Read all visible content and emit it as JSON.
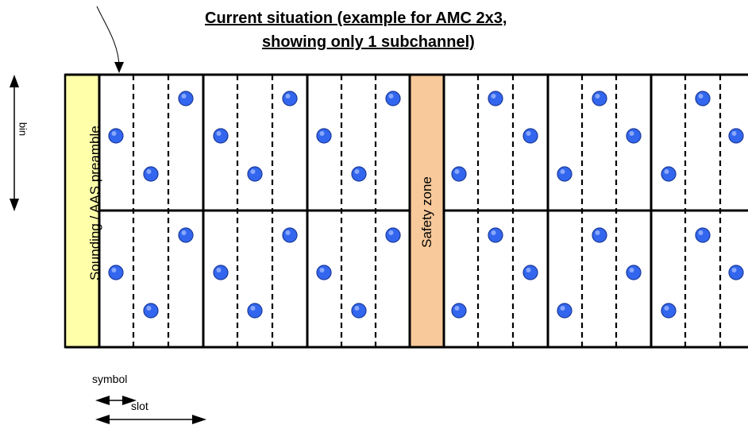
{
  "title": {
    "line1": "Current situation (example for AMC 2x3,",
    "line2": "showing only 1 subchannel)"
  },
  "labels": {
    "bin": "bin",
    "preamble": "Sounding / AAS preamble",
    "safety": "Safety zone",
    "symbol": "symbol",
    "slot": "slot"
  },
  "colors": {
    "preamble": "#ffffaa",
    "safety": "#f8c99b",
    "pilot": "#3366ee",
    "pilot_edge": "#1a3a99"
  },
  "icons": {
    "pilot": "pilot-dot-icon",
    "arrow": "double-arrow-icon"
  }
}
